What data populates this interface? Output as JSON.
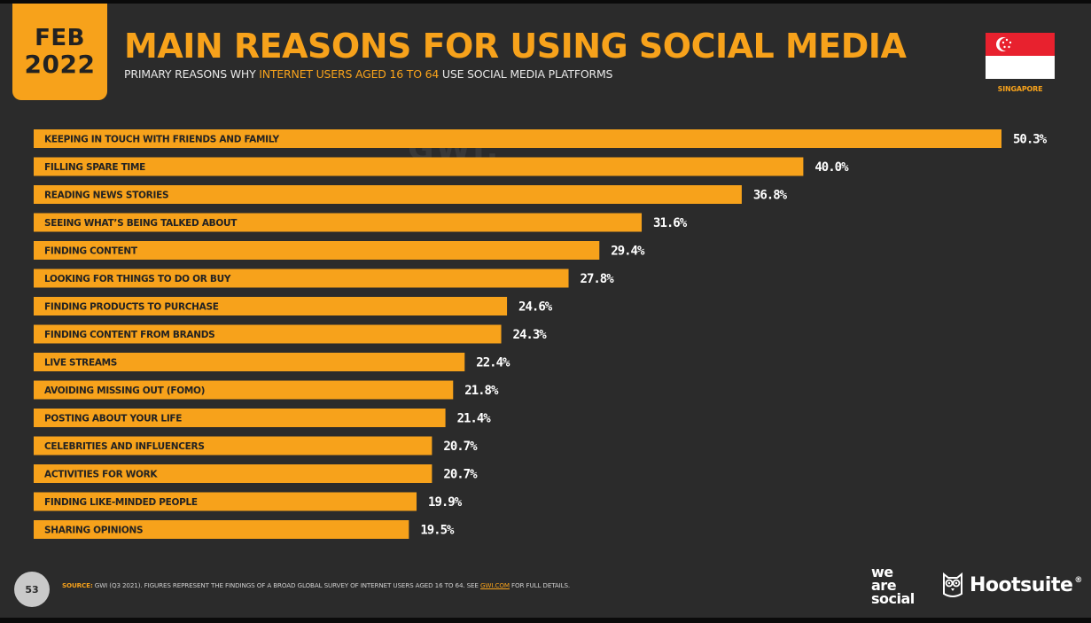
{
  "header": {
    "month": "FEB",
    "year": "2022",
    "title": "MAIN REASONS FOR USING SOCIAL MEDIA",
    "subtitle_pre": "PRIMARY REASONS WHY ",
    "subtitle_highlight": "INTERNET USERS AGED 16 TO 64",
    "subtitle_post": " USE SOCIAL MEDIA PLATFORMS",
    "country": "SINGAPORE",
    "watermark": "GWI."
  },
  "colors": {
    "accent": "#f7a21b",
    "background": "#2b2b2b",
    "bar_label_text": "#222222",
    "value_text": "#ffffff",
    "flag_red": "#e8212e",
    "flag_white": "#ffffff"
  },
  "chart_data": {
    "type": "bar",
    "orientation": "horizontal",
    "categories": [
      "KEEPING IN TOUCH WITH FRIENDS AND FAMILY",
      "FILLING SPARE TIME",
      "READING NEWS STORIES",
      "SEEING WHAT’S BEING TALKED ABOUT",
      "FINDING CONTENT",
      "LOOKING FOR THINGS TO DO OR BUY",
      "FINDING PRODUCTS TO PURCHASE",
      "FINDING CONTENT FROM BRANDS",
      "LIVE STREAMS",
      "AVOIDING MISSING OUT (FOMO)",
      "POSTING ABOUT YOUR LIFE",
      "CELEBRITIES AND INFLUENCERS",
      "ACTIVITIES FOR WORK",
      "FINDING LIKE-MINDED PEOPLE",
      "SHARING OPINIONS"
    ],
    "values": [
      50.3,
      40.0,
      36.8,
      31.6,
      29.4,
      27.8,
      24.6,
      24.3,
      22.4,
      21.8,
      21.4,
      20.7,
      20.7,
      19.9,
      19.5
    ],
    "value_labels": [
      "50.3%",
      "40.0%",
      "36.8%",
      "31.6%",
      "29.4%",
      "27.8%",
      "24.6%",
      "24.3%",
      "22.4%",
      "21.8%",
      "21.4%",
      "20.7%",
      "20.7%",
      "19.9%",
      "19.5%"
    ],
    "unit": "%",
    "xlim": [
      0,
      50.3
    ]
  },
  "footer": {
    "page_number": "53",
    "source_label": "SOURCE:",
    "source_text": " GWI (Q3 2021). FIGURES REPRESENT THE FINDINGS OF A BROAD GLOBAL SURVEY OF INTERNET USERS AGED 16 TO 64. SEE ",
    "source_link": "GWI.COM",
    "source_end": " FOR FULL DETAILS.",
    "logo_we": "we",
    "logo_are": "are",
    "logo_social": "social",
    "logo_hootsuite": "Hootsuite",
    "logo_reg": "®"
  }
}
